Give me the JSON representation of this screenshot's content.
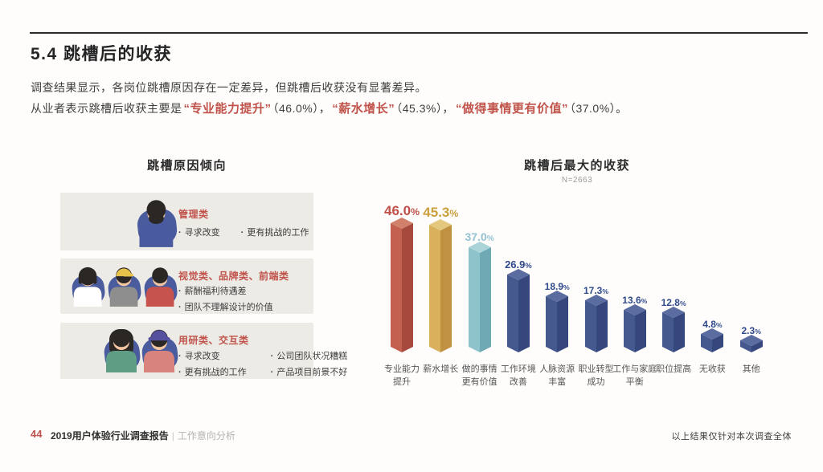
{
  "page": {
    "title": "5.4 跳槽后的收获",
    "paragraph_line1": "调查结果显示，各岗位跳槽原因存在一定差异，但跳槽后收获没有显著差异。",
    "paragraph_line2_segments": [
      {
        "t": "从业者表示跳槽后收获主要是",
        "h": false
      },
      {
        "t": "“专业能力提升”",
        "h": true
      },
      {
        "t": "（46.0%），",
        "h": false
      },
      {
        "t": "“薪水增长”",
        "h": true
      },
      {
        "t": "（45.3%），",
        "h": false
      },
      {
        "t": "“做得事情更有价值”",
        "h": true
      },
      {
        "t": "（37.0%）。",
        "h": false
      }
    ]
  },
  "reasons_panel": {
    "title": "跳槽原因倾向",
    "avatar_colors": {
      "skin": "#f3c5a2",
      "blob": "#4a5c9e",
      "hair": "#2b2725"
    },
    "cards": [
      {
        "label": "管理类",
        "bullet_columns": [
          [
            "寻求改变"
          ],
          [
            "更有挑战的工作"
          ]
        ],
        "avatars": [
          {
            "name": "man-beard-avatar",
            "type": "man-beard",
            "shirt": "#4a5a9e"
          }
        ]
      },
      {
        "label": "视觉类、品牌类、前端类",
        "bullet_columns": [
          [
            "薪酬福利待遇差",
            "团队不理解设计的价值"
          ]
        ],
        "avatars": [
          {
            "name": "woman-bob-avatar",
            "type": "woman-bob",
            "shirt": "#ffffff"
          },
          {
            "name": "man-cap-avatar",
            "type": "man-cap",
            "shirt": "#8e8e8e",
            "cap": "#e7c24a"
          },
          {
            "name": "man-avatar",
            "type": "man",
            "shirt": "#c6534e"
          }
        ]
      },
      {
        "label": "用研类、交互类",
        "bullet_columns": [
          [
            "寻求改变",
            "更有挑战的工作"
          ],
          [
            "公司团队状况糟糕",
            "产品项目前景不好"
          ]
        ],
        "avatars": [
          {
            "name": "woman-long-avatar",
            "type": "woman-long",
            "shirt": "#5f9e85"
          },
          {
            "name": "woman-hat-avatar",
            "type": "woman-hat",
            "shirt": "#d9837d",
            "hat": "#55519e"
          }
        ]
      }
    ]
  },
  "chart_data": {
    "type": "bar",
    "style": "3d-prism",
    "title": "跳槽后最大的收获",
    "sample_label": "N=2663",
    "grid": false,
    "axis_shown": false,
    "unit": "%",
    "ylim": [
      0,
      50
    ],
    "categories": [
      "专业能力提升",
      "薪水增长",
      "做的事情更有价值",
      "工作环境改善",
      "人脉资源丰富",
      "职业转型成功",
      "工作与家庭平衡",
      "职位提高",
      "无收获",
      "其他"
    ],
    "category_lines": [
      [
        "专业能力",
        "提升"
      ],
      [
        "薪水增长"
      ],
      [
        "做的事情",
        "更有价值"
      ],
      [
        "工作环境",
        "改善"
      ],
      [
        "人脉资源",
        "丰富"
      ],
      [
        "职业转型",
        "成功"
      ],
      [
        "工作与家庭",
        "平衡"
      ],
      [
        "职位提高"
      ],
      [
        "无收获"
      ],
      [
        "其他"
      ]
    ],
    "values": [
      46.0,
      45.3,
      37.0,
      26.9,
      18.9,
      17.3,
      13.6,
      12.8,
      4.8,
      2.3
    ],
    "value_labels": [
      "46.0",
      "45.3",
      "37.0",
      "26.9",
      "18.9",
      "17.3",
      "13.6",
      "12.8",
      "4.8",
      "2.3"
    ],
    "bar_palette": [
      {
        "name": "red",
        "front": "#c4604f",
        "side": "#a54a3c",
        "top": "#d0806b",
        "label": "#c0504a"
      },
      {
        "name": "gold",
        "front": "#d9b15c",
        "side": "#bf9140",
        "top": "#e4c87e",
        "label": "#cba03f"
      },
      {
        "name": "teal",
        "front": "#8fc3cb",
        "side": "#6fa9b4",
        "top": "#abd4d9",
        "label": "#93c2d2"
      },
      {
        "name": "blue",
        "front": "#46598f",
        "side": "#35477c",
        "top": "#5a6ca0",
        "label": "#2f4a8c"
      }
    ],
    "bar_color_index": [
      0,
      1,
      2,
      3,
      3,
      3,
      3,
      3,
      3,
      3
    ]
  },
  "footer": {
    "page_number": "44",
    "report": "2019用户体验行业调查报告",
    "divider": "|",
    "section": "工作意向分析",
    "right_note": "以上结果仅针对本次调查全体"
  }
}
